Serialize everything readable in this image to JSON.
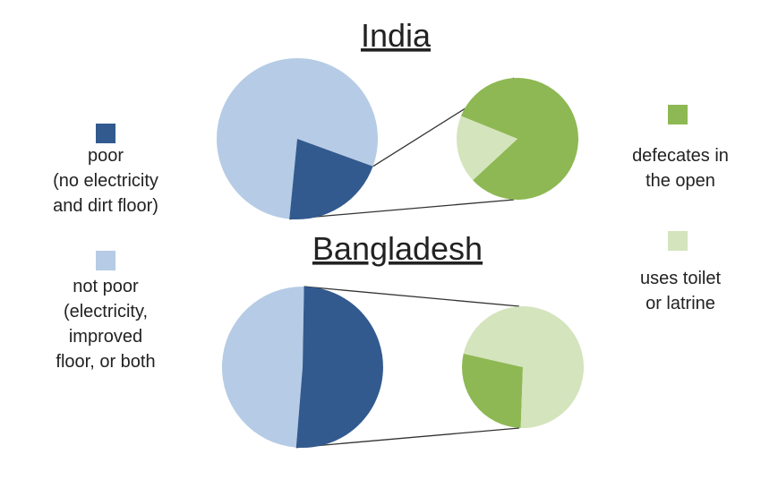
{
  "colors": {
    "poor": "#325a8f",
    "not_poor": "#b6cbe5",
    "open_defecation": "#8eb853",
    "toilet": "#d4e4bd",
    "connector": "#333333"
  },
  "legend": {
    "poor": "poor\n(no electricity\nand dirt floor)",
    "not_poor": "not poor\n(electricity,\nimproved\nfloor, or both",
    "open_defecation": "defecates in\nthe open",
    "toilet": "uses toilet\nor latrine"
  },
  "chart_data": [
    {
      "type": "pie",
      "title": "India",
      "main": {
        "series": [
          {
            "name": "poor",
            "value": 0.21
          },
          {
            "name": "not poor",
            "value": 0.79
          }
        ]
      },
      "detail_of": "poor",
      "detail": {
        "series": [
          {
            "name": "defecates in the open",
            "value": 0.82
          },
          {
            "name": "uses toilet or latrine",
            "value": 0.18
          }
        ]
      }
    },
    {
      "type": "pie",
      "title": "Bangladesh",
      "main": {
        "series": [
          {
            "name": "poor",
            "value": 0.51
          },
          {
            "name": "not poor",
            "value": 0.49
          }
        ]
      },
      "detail_of": "poor",
      "detail": {
        "series": [
          {
            "name": "defecates in the open",
            "value": 0.28
          },
          {
            "name": "uses toilet or latrine",
            "value": 0.72
          }
        ]
      }
    }
  ]
}
